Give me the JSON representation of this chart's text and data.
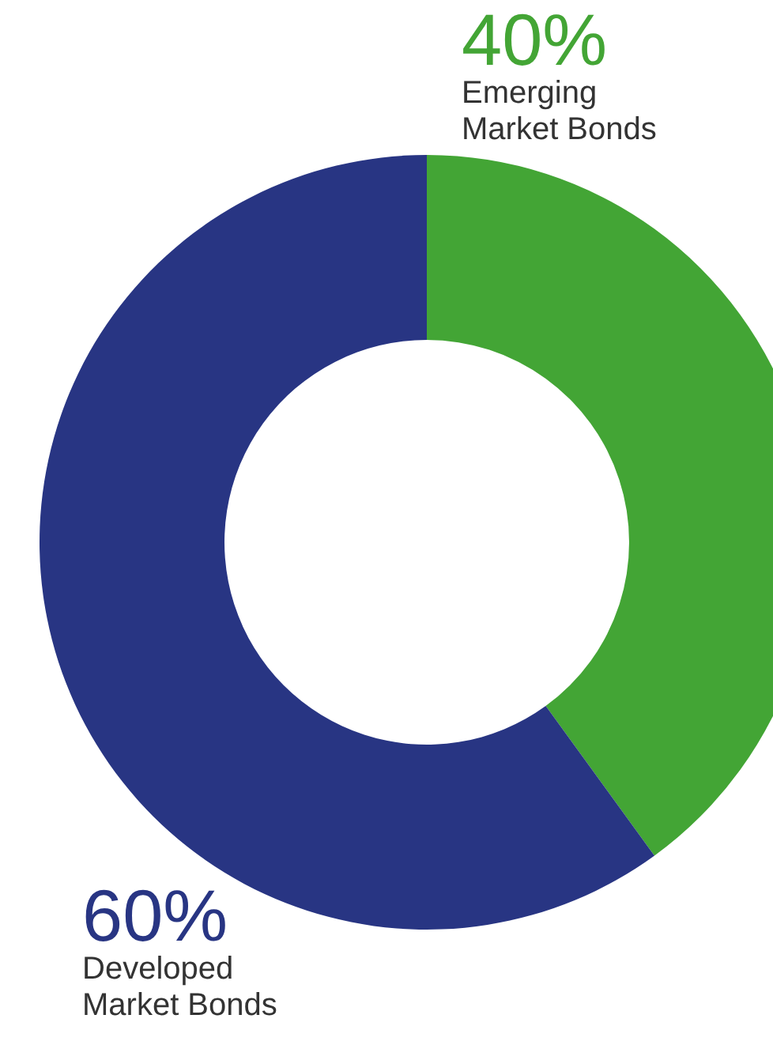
{
  "chart_data": {
    "type": "donut",
    "categories": [
      "Emerging Market Bonds",
      "Developed Market Bonds"
    ],
    "values": [
      40,
      60
    ],
    "colors": [
      "#43a535",
      "#283583"
    ],
    "value_labels": [
      "40%",
      "60%"
    ]
  }
}
